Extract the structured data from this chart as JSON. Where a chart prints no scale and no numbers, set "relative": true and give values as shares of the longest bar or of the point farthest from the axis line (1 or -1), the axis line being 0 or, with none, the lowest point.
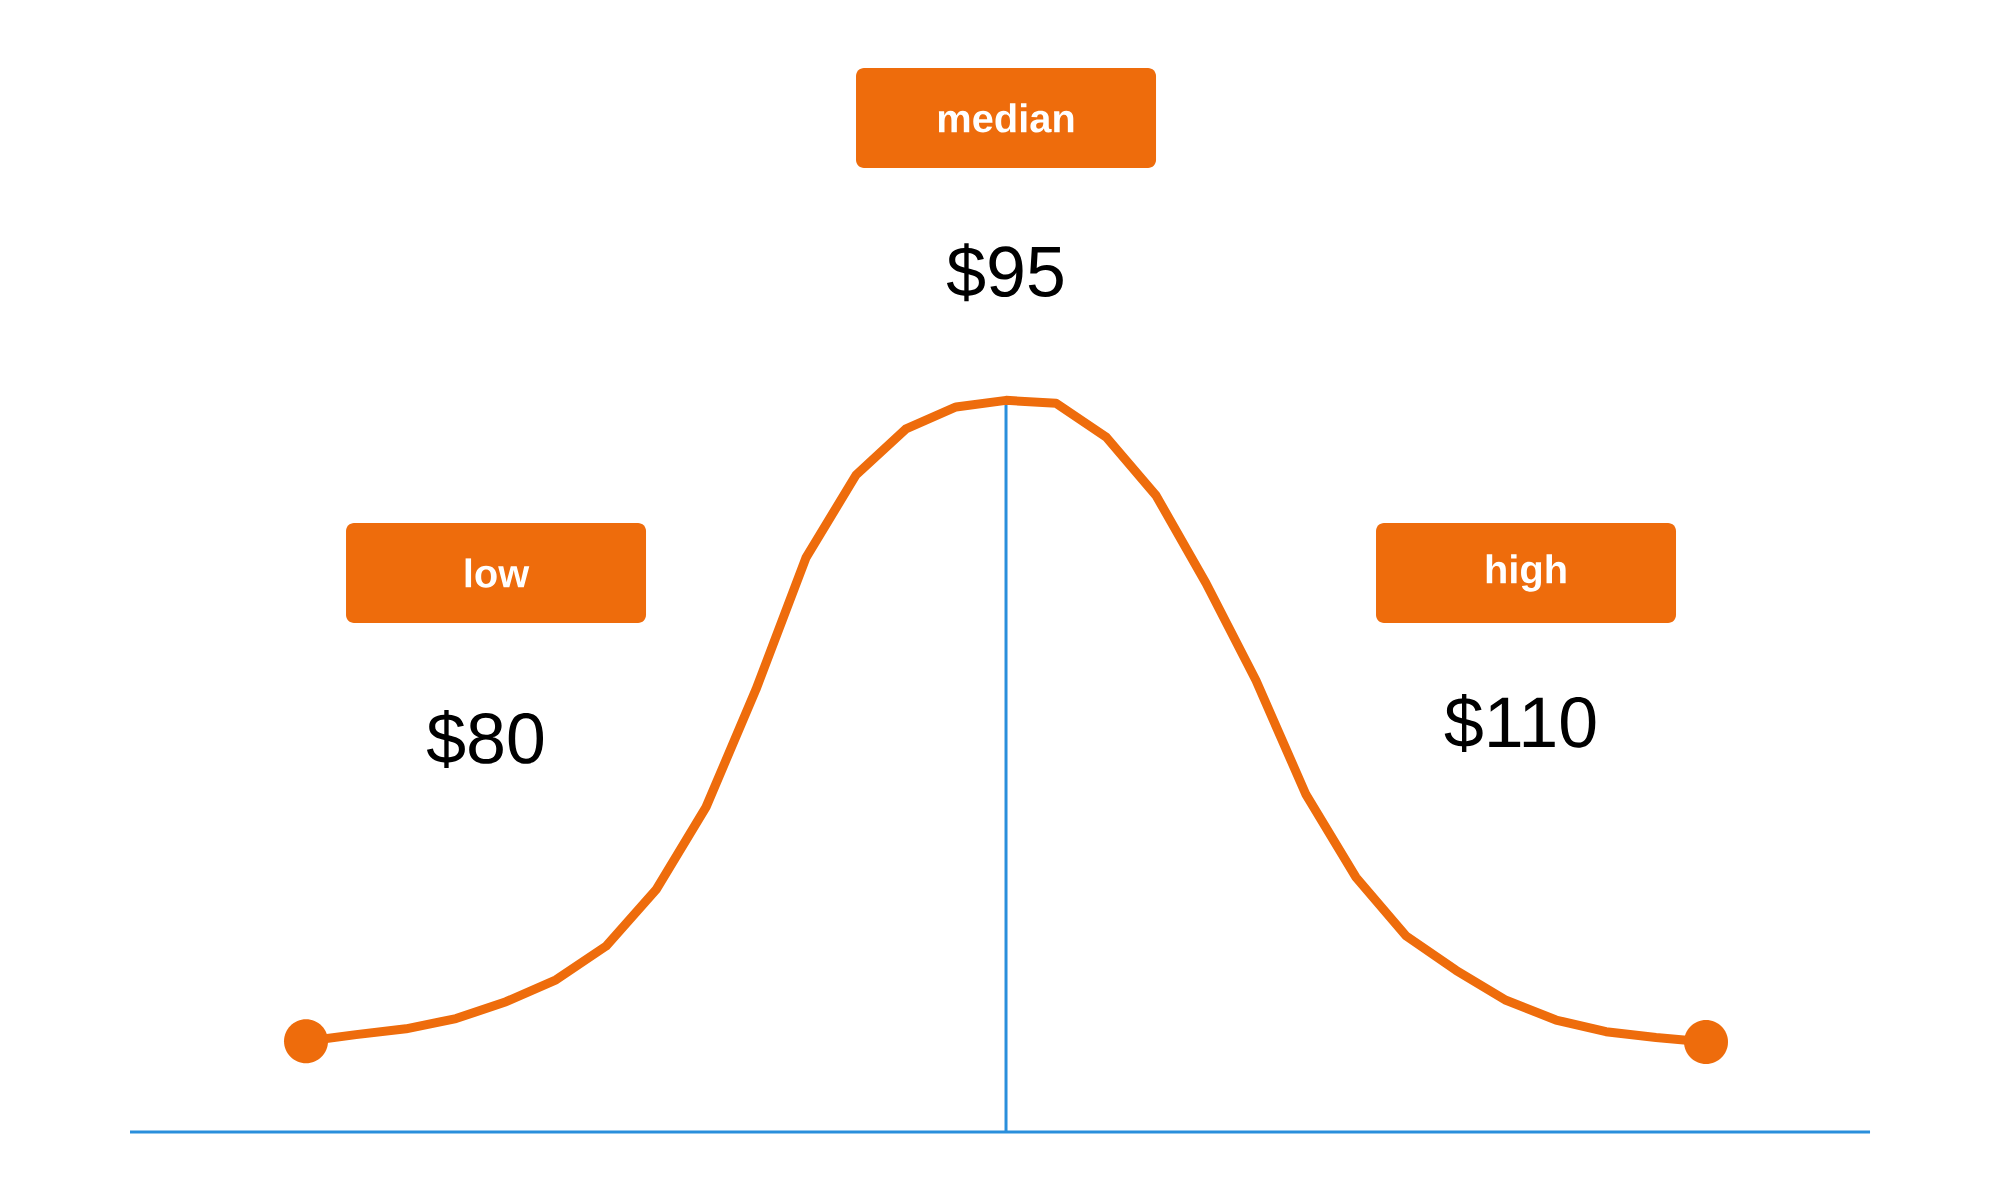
{
  "chart_data": {
    "type": "line",
    "relative": true,
    "categories": [
      null,
      null,
      null,
      null,
      null,
      null,
      null,
      null,
      null,
      null,
      null,
      null,
      null,
      null,
      null,
      null,
      null,
      null,
      null,
      null,
      null,
      null,
      null,
      null,
      null,
      null,
      null,
      null,
      null
    ],
    "values": [
      0.124,
      0.133,
      0.141,
      0.155,
      0.178,
      0.208,
      0.254,
      0.331,
      0.444,
      0.605,
      0.785,
      0.898,
      0.961,
      0.991,
      1.0,
      0.996,
      0.95,
      0.87,
      0.75,
      0.617,
      0.461,
      0.348,
      0.268,
      0.221,
      0.18,
      0.153,
      0.137,
      0.129,
      0.123
    ],
    "color": "#ee6c0c",
    "annotations": [
      "low",
      "$80",
      "median",
      "$95",
      "high",
      "$110"
    ]
  }
}
